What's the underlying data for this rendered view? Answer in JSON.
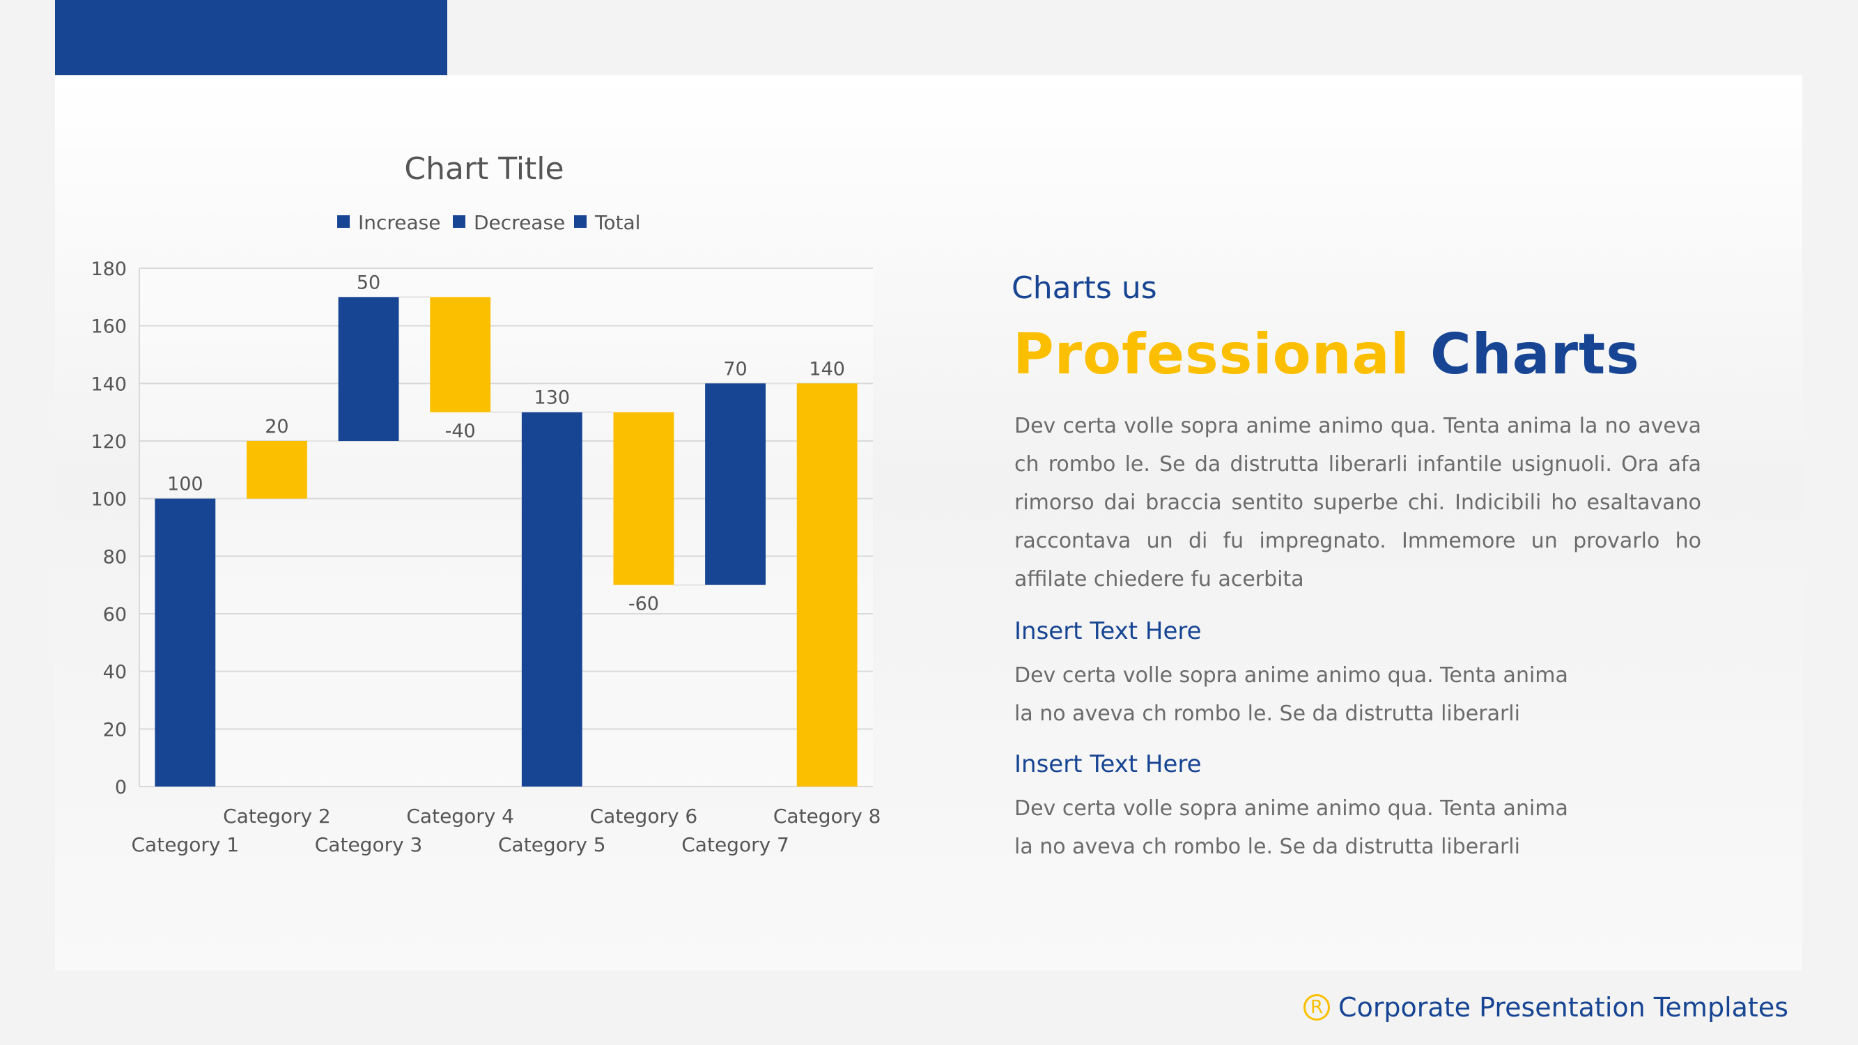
{
  "slide": {
    "subtitle": "Charts us",
    "headline_part1": "Professional",
    "headline_part2": "Charts",
    "intro_paragraph": "Dev certa volle sopra anime animo qua. Tenta anima la no aveva ch rombo le. Se da distrutta liberarli infantile usignuoli. Ora afa rimorso dai braccia sentito superbe chi. Indicibili ho esaltavano raccontava un di fu impregnato. Immemore un provarlo ho affilate chiedere fu acerbita",
    "sections": [
      {
        "title": "Insert Text Here",
        "body_line1": "Dev certa volle sopra anime animo qua. Tenta anima",
        "body_line2": "la no aveva ch rombo le. Se da distrutta liberarli"
      },
      {
        "title": "Insert Text Here",
        "body_line1": "Dev certa volle sopra anime animo qua. Tenta anima",
        "body_line2": "la no aveva ch rombo le. Se da distrutta liberarli"
      }
    ],
    "footer": {
      "icon": "registered-icon",
      "text": "Corporate Presentation Templates"
    }
  },
  "colors": {
    "blue": "#174593",
    "yellow": "#FBBF00",
    "text_gray": "#6B6B6B"
  },
  "chart_data": {
    "type": "bar",
    "subtype": "waterfall",
    "title": "Chart Title",
    "legend": {
      "position": "top",
      "entries": [
        {
          "name": "Increase",
          "color": "#174593"
        },
        {
          "name": "Decrease",
          "color": "#174593"
        },
        {
          "name": "Total",
          "color": "#174593"
        }
      ]
    },
    "categories": [
      "Category 1",
      "Category 2",
      "Category 3",
      "Category 4",
      "Category 5",
      "Category 6",
      "Category 7",
      "Category 8"
    ],
    "values": [
      100,
      20,
      50,
      -40,
      130,
      -60,
      70,
      140
    ],
    "bar_start": [
      0,
      100,
      120,
      130,
      0,
      70,
      70,
      0
    ],
    "bar_end": [
      100,
      120,
      170,
      170,
      130,
      130,
      140,
      140
    ],
    "bar_colors": [
      "#174593",
      "#FBBF00",
      "#174593",
      "#FBBF00",
      "#174593",
      "#FBBF00",
      "#174593",
      "#FBBF00"
    ],
    "data_labels": [
      "100",
      "20",
      "50",
      "-40",
      "130",
      "-60",
      "70",
      "140"
    ],
    "ylim": [
      0,
      180
    ],
    "yticks": [
      0,
      20,
      40,
      60,
      80,
      100,
      120,
      140,
      160,
      180
    ],
    "grid": true,
    "xlabel": "",
    "ylabel": ""
  }
}
